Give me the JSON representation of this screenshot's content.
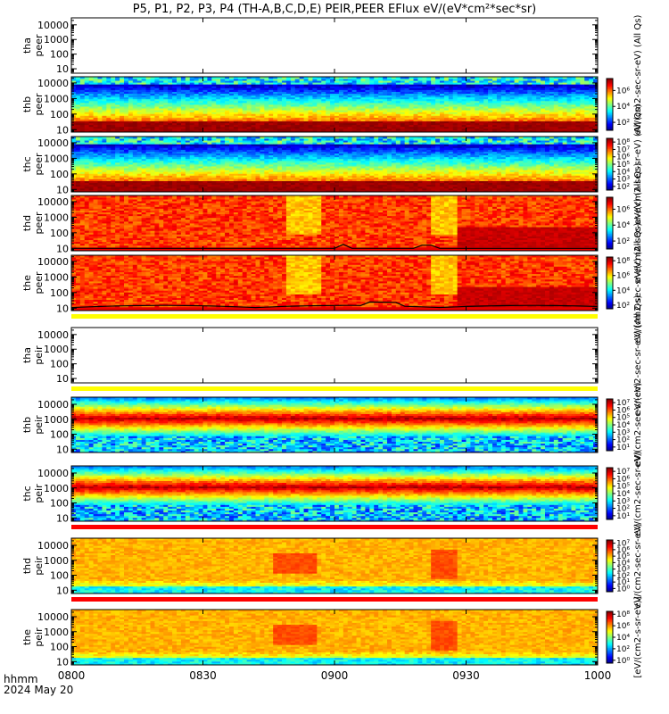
{
  "title": "P5, P1, P2, P3, P4 (TH-A,B,C,D,E) PEIR,PEER EFlux eV/(eV*cm²*sec*sr)",
  "time_axis": {
    "ticks": [
      "0800",
      "0830",
      "0900",
      "0930",
      "1000"
    ],
    "tick_hours": [
      8.0,
      8.5,
      9.0,
      9.5,
      10.0
    ],
    "range_hours": [
      8.0,
      10.0
    ],
    "corner_label_line1": "hhmm",
    "corner_label_line2": "2024 May 20"
  },
  "colors": {
    "no_data_bar_yellow": "#ffff00",
    "no_data_bar_red": "#ff0000",
    "trace": "#000000"
  },
  "chart_data": [
    {
      "type": "heatmap",
      "ylabel": [
        "tha",
        "peer"
      ],
      "yscale": "log",
      "ylim": [
        5,
        30000
      ],
      "yticks": [
        "10",
        "100",
        "1000",
        "10000"
      ],
      "ytick_values": [
        10,
        100,
        1000,
        10000
      ],
      "empty": true,
      "no_data_bar": null,
      "colorbar": null,
      "side_label": "eV/(cm2-sec-sr-eV) (All Qs)",
      "side_label_span": 2
    },
    {
      "type": "heatmap",
      "ylabel": [
        "thb",
        "peer"
      ],
      "yscale": "log",
      "ylim": [
        7,
        25000
      ],
      "yticks": [
        "10",
        "100",
        "1000",
        "10000"
      ],
      "ytick_values": [
        10,
        100,
        1000,
        10000
      ],
      "empty": false,
      "profile": "peer_bc",
      "no_data_bar": null,
      "colorbar": {
        "ticks": [
          "10⁶",
          "10⁴",
          "10²"
        ],
        "tick_exps": [
          6,
          4,
          2
        ],
        "range_exp": [
          1,
          7.5
        ]
      },
      "side_label": null
    },
    {
      "type": "heatmap",
      "ylabel": [
        "thc",
        "peer"
      ],
      "yscale": "log",
      "ylim": [
        7,
        25000
      ],
      "yticks": [
        "10",
        "100",
        "1000",
        "10000"
      ],
      "ytick_values": [
        10,
        100,
        1000,
        10000
      ],
      "empty": false,
      "profile": "peer_bc",
      "no_data_bar": null,
      "colorbar": {
        "ticks": [
          "10⁸",
          "10⁷",
          "10⁶",
          "10⁵",
          "10⁴",
          "10³",
          "10²"
        ],
        "tick_exps": [
          8,
          7,
          6,
          5,
          4,
          3,
          2
        ],
        "range_exp": [
          1.5,
          8.5
        ]
      },
      "side_label": "eV/(cm2-sec-sr-eV) (All Qs)",
      "side_label_span": 1
    },
    {
      "type": "heatmap",
      "ylabel": [
        "thd",
        "peer"
      ],
      "yscale": "log",
      "ylim": [
        7,
        25000
      ],
      "yticks": [
        "10",
        "100",
        "1000",
        "10000"
      ],
      "ytick_values": [
        10,
        100,
        1000,
        10000
      ],
      "empty": false,
      "profile": "peer_de",
      "no_data_bar": null,
      "trace": "d",
      "colorbar": {
        "ticks": [
          "10⁶",
          "10⁴",
          "10²"
        ],
        "tick_exps": [
          6,
          4,
          2
        ],
        "range_exp": [
          1,
          7.5
        ]
      },
      "side_label": "eV/(cm2-sec-sr-eV) (All Qs)",
      "side_label_span": 1
    },
    {
      "type": "heatmap",
      "ylabel": [
        "the",
        "peer"
      ],
      "yscale": "log",
      "ylim": [
        7,
        25000
      ],
      "yticks": [
        "10",
        "100",
        "1000",
        "10000"
      ],
      "ytick_values": [
        10,
        100,
        1000,
        10000
      ],
      "empty": false,
      "profile": "peer_de",
      "no_data_bar": "yellow",
      "trace": "e",
      "colorbar": {
        "ticks": [
          "10⁸",
          "10⁶",
          "10⁴",
          "10²"
        ],
        "tick_exps": [
          8,
          6,
          4,
          2
        ],
        "range_exp": [
          1.5,
          8.5
        ]
      },
      "side_label": "eV/(cm2-sec-sr-eV) (All Qs)",
      "side_label_span": 1
    },
    {
      "type": "heatmap",
      "ylabel": [
        "tha",
        "peir"
      ],
      "yscale": "log",
      "ylim": [
        5,
        30000
      ],
      "yticks": [
        "10",
        "100",
        "1000",
        "10000"
      ],
      "ytick_values": [
        10,
        100,
        1000,
        10000
      ],
      "empty": true,
      "no_data_bar": "yellow",
      "colorbar": null,
      "side_label": "eV/(cm2-sec-sr-eV) (All Qs)",
      "side_label_span": 1
    },
    {
      "type": "heatmap",
      "ylabel": [
        "thb",
        "peir"
      ],
      "yscale": "log",
      "ylim": [
        6,
        30000
      ],
      "yticks": [
        "10",
        "100",
        "1000",
        "10000"
      ],
      "ytick_values": [
        10,
        100,
        1000,
        10000
      ],
      "empty": false,
      "profile": "peir_bc",
      "no_data_bar": null,
      "colorbar": {
        "ticks": [
          "10⁷",
          "10⁶",
          "10⁵",
          "10⁴",
          "10³",
          "10²",
          "10¹"
        ],
        "tick_exps": [
          7,
          6,
          5,
          4,
          3,
          2,
          1
        ],
        "range_exp": [
          0.5,
          7.5
        ]
      },
      "side_label": "eV/(cm2-sec-sr-eV)",
      "side_label_span": 1
    },
    {
      "type": "heatmap",
      "ylabel": [
        "thc",
        "peir"
      ],
      "yscale": "log",
      "ylim": [
        6,
        30000
      ],
      "yticks": [
        "10",
        "100",
        "1000",
        "10000"
      ],
      "ytick_values": [
        10,
        100,
        1000,
        10000
      ],
      "empty": false,
      "profile": "peir_bc",
      "no_data_bar": "red",
      "colorbar": {
        "ticks": [
          "10⁷",
          "10⁶",
          "10⁵",
          "10⁴",
          "10³",
          "10²",
          "10¹"
        ],
        "tick_exps": [
          7,
          6,
          5,
          4,
          3,
          2,
          1
        ],
        "range_exp": [
          0.5,
          7.5
        ]
      },
      "side_label": "eV/(cm2-sec-sr-eV)",
      "side_label_span": 1
    },
    {
      "type": "heatmap",
      "ylabel": [
        "thd",
        "peir"
      ],
      "yscale": "log",
      "ylim": [
        6,
        30000
      ],
      "yticks": [
        "10",
        "100",
        "1000",
        "10000"
      ],
      "ytick_values": [
        10,
        100,
        1000,
        10000
      ],
      "empty": false,
      "profile": "peir_de",
      "no_data_bar": "red",
      "colorbar": {
        "ticks": [
          "10⁷",
          "10⁶",
          "10⁵",
          "10⁴",
          "10³",
          "10²",
          "10¹",
          "10⁰"
        ],
        "tick_exps": [
          7,
          6,
          5,
          4,
          3,
          2,
          1,
          0
        ],
        "range_exp": [
          -0.5,
          7.5
        ]
      },
      "side_label": "eV/(cm2-sec-sr-eV)",
      "side_label_span": 1
    },
    {
      "type": "heatmap",
      "ylabel": [
        "the",
        "peir"
      ],
      "yscale": "log",
      "ylim": [
        6,
        30000
      ],
      "yticks": [
        "10",
        "100",
        "1000",
        "10000"
      ],
      "ytick_values": [
        10,
        100,
        1000,
        10000
      ],
      "empty": false,
      "profile": "peir_de",
      "no_data_bar": null,
      "colorbar": {
        "ticks": [
          "10⁸",
          "10⁶",
          "10⁴",
          "10²",
          "10⁰"
        ],
        "tick_exps": [
          8,
          6,
          4,
          2,
          0
        ],
        "range_exp": [
          -0.5,
          8.5
        ]
      },
      "side_label": "[eV/(cm2-s-sr-eV)]",
      "side_label_span": 1
    }
  ]
}
